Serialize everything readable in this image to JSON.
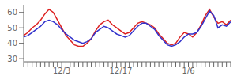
{
  "chart_data": {
    "type": "line",
    "categories": [
      null,
      null,
      null,
      null,
      null,
      null,
      null,
      null,
      null,
      "12/3",
      null,
      null,
      null,
      null,
      null,
      null,
      null,
      null,
      null,
      null,
      null,
      null,
      null,
      "12/17",
      null,
      null,
      null,
      null,
      null,
      null,
      null,
      null,
      null,
      null,
      null,
      null,
      null,
      null,
      null,
      "1/6",
      null,
      null,
      null,
      null,
      null,
      null,
      null,
      null,
      null,
      null
    ],
    "series": [
      {
        "color": "#dd2222",
        "values": [
          45,
          47,
          50,
          52,
          55,
          59,
          62,
          60,
          55,
          50,
          45,
          42,
          39,
          38,
          38,
          40,
          43,
          48,
          52,
          54,
          55,
          52,
          50,
          48,
          46,
          47,
          50,
          53,
          54,
          53,
          52,
          50,
          46,
          43,
          40,
          39,
          40,
          44,
          47,
          46,
          44,
          47,
          52,
          58,
          62,
          57,
          53,
          54,
          52,
          55
        ]
      },
      {
        "color": "#3333cc",
        "values": [
          44,
          45,
          47,
          49,
          51,
          54,
          55,
          54,
          52,
          49,
          46,
          44,
          42,
          41,
          40,
          41,
          43,
          47,
          49,
          51,
          50,
          48,
          46,
          45,
          44,
          45,
          48,
          51,
          53,
          53,
          51,
          49,
          45,
          42,
          39,
          38,
          39,
          41,
          44,
          46,
          46,
          47,
          51,
          56,
          61,
          58,
          50,
          52,
          51,
          54
        ]
      }
    ],
    "ylim": [
      28,
      65
    ],
    "yticks": [
      30,
      40,
      50,
      60
    ]
  }
}
